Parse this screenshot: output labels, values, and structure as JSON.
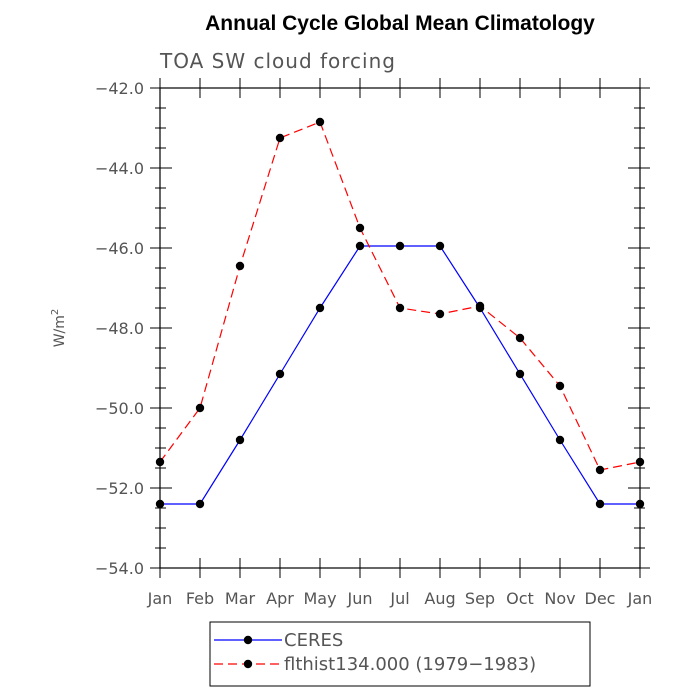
{
  "chart_data": {
    "type": "line",
    "title": "Annual Cycle Global Mean Climatology",
    "subtitle": "TOA SW cloud forcing",
    "xlabel": "",
    "ylabel": "W/m",
    "ylabel_superscript": "2",
    "categories": [
      "Jan",
      "Feb",
      "Mar",
      "Apr",
      "May",
      "Jun",
      "Jul",
      "Aug",
      "Sep",
      "Oct",
      "Nov",
      "Dec",
      "Jan"
    ],
    "ylim": [
      -54.0,
      -42.0
    ],
    "yticks": [
      "-54.0",
      "-52.0",
      "-50.0",
      "-48.0",
      "-46.0",
      "-44.0",
      "-42.0"
    ],
    "grid": false,
    "legend_position": "bottom",
    "series": [
      {
        "name": "CERES",
        "color": "#0000ff",
        "dash": "solid",
        "values": [
          -52.4,
          -52.4,
          -50.8,
          -49.15,
          -47.5,
          -45.95,
          -45.95,
          -45.95,
          -47.5,
          -49.15,
          -50.8,
          -52.4,
          -52.4
        ]
      },
      {
        "name": "flthist134.000 (1979−1983)",
        "color": "#ff0000",
        "dash": "dashed",
        "values": [
          -51.35,
          -50.0,
          -46.45,
          -43.25,
          -42.85,
          -45.5,
          -47.5,
          -47.65,
          -47.45,
          -48.25,
          -49.45,
          -51.55,
          -51.35
        ]
      }
    ]
  }
}
